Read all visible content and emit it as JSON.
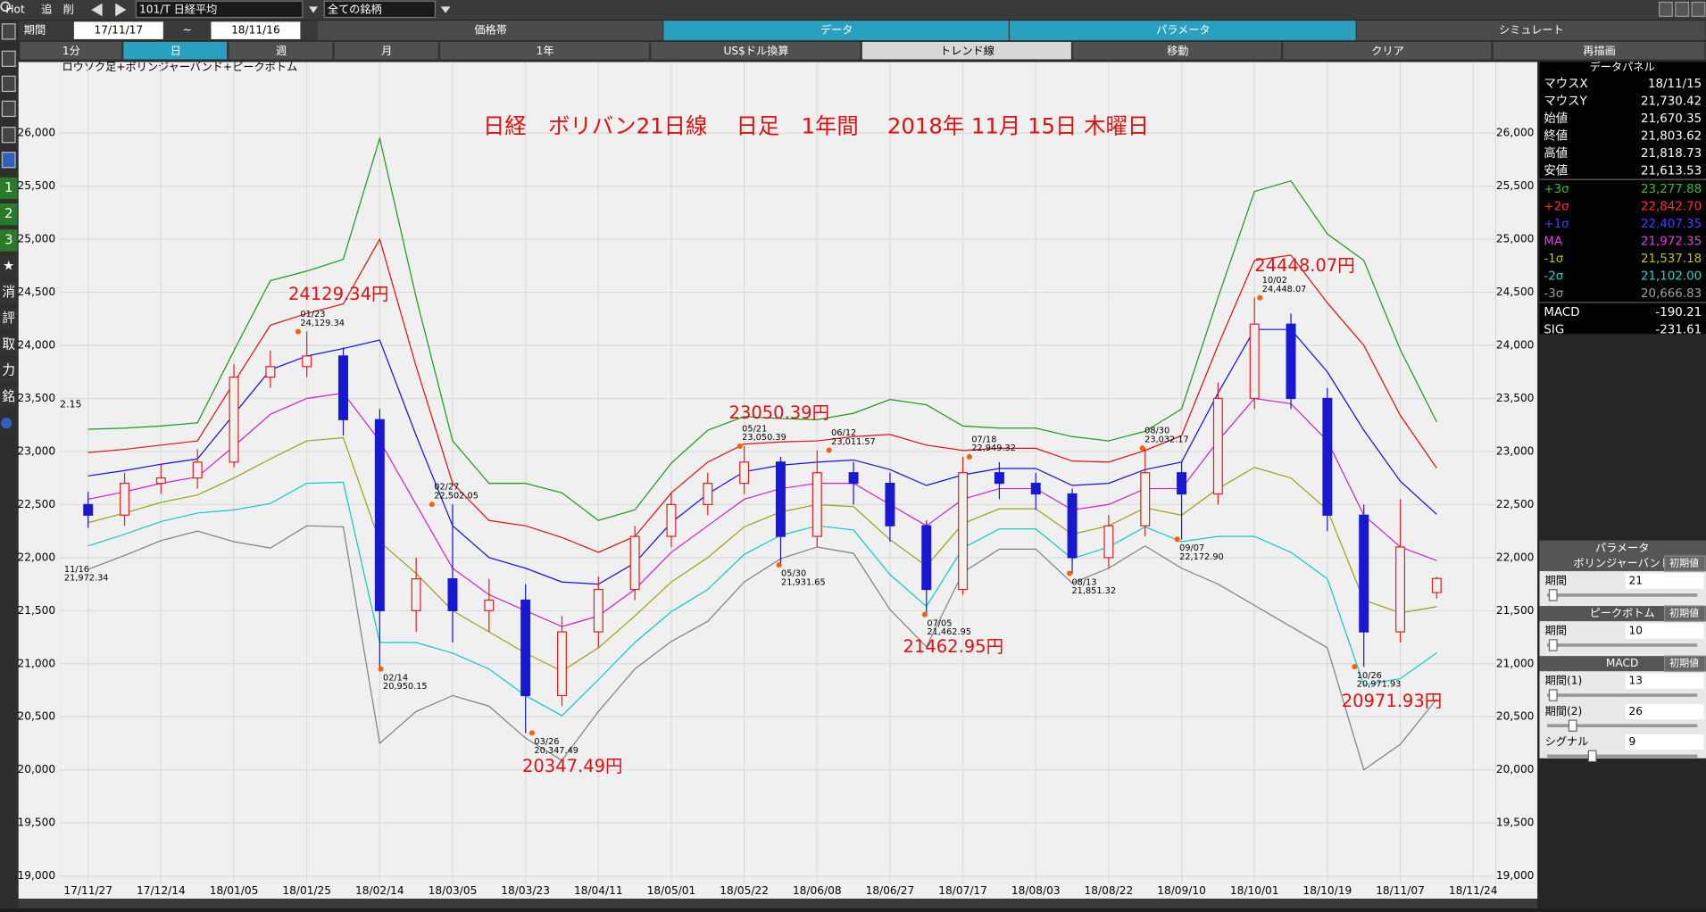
{
  "toolbar": {
    "row1": [
      "Hot",
      "追",
      "削",
      "101/T 日経平均",
      "全ての銘柄"
    ],
    "period_label": "期間",
    "from": "17/11/17",
    "tilde": "~",
    "to": "18/11/16",
    "tabs": [
      "価格帯",
      "データ",
      "パラメータ",
      "シミュレート"
    ],
    "buttons": [
      "1分",
      "日",
      "週",
      "月",
      "1年",
      "US$ドル換算",
      "トレンド線",
      "移動",
      "クリア",
      "再描画"
    ]
  },
  "sidebar": [
    "1",
    "2",
    "3",
    "★",
    "消",
    "評",
    "取",
    "力",
    "銘"
  ],
  "data_panel": {
    "title": "データパネル",
    "rows": [
      {
        "label": "マウスX",
        "value": "18/11/15",
        "color": "#ffffff"
      },
      {
        "label": "マウスY",
        "value": "21,730.42",
        "color": "#ffffff"
      },
      {
        "label": "始値",
        "value": "21,670.35",
        "color": "#ffffff"
      },
      {
        "label": "終値",
        "value": "21,803.62",
        "color": "#ffffff"
      },
      {
        "label": "高値",
        "value": "21,818.73",
        "color": "#ffffff"
      },
      {
        "label": "安値",
        "value": "21,613.53",
        "color": "#ffffff"
      },
      {
        "label": "+3σ",
        "value": "23,277.88",
        "color": "#30c030"
      },
      {
        "label": "+2σ",
        "value": "22,842.70",
        "color": "#ff3030"
      },
      {
        "label": "+1σ",
        "value": "22,407.35",
        "color": "#4040ff"
      },
      {
        "label": "MA",
        "value": "21,972.35",
        "color": "#e040e0"
      },
      {
        "label": "-1σ",
        "value": "21,537.18",
        "color": "#c0c020"
      },
      {
        "label": "-2σ",
        "value": "21,102.00",
        "color": "#30d0d0"
      },
      {
        "label": "-3σ",
        "value": "20,666.83",
        "color": "#a0a0a0"
      },
      {
        "label": "MACD",
        "value": "-190.21",
        "color": "#ffffff"
      },
      {
        "label": "SIG",
        "value": "-231.61",
        "color": "#ffffff"
      }
    ]
  },
  "param_panel": {
    "title": "パラメータ",
    "groups": [
      {
        "name": "ボリンジャーバンド",
        "reset": "初期値",
        "items": [
          {
            "label": "期間",
            "value": "21"
          }
        ]
      },
      {
        "name": "ピークボトム",
        "reset": "初期値",
        "items": [
          {
            "label": "期間",
            "value": "10"
          }
        ]
      },
      {
        "name": "MACD",
        "reset": "初期値",
        "items": [
          {
            "label": "期間(1)",
            "value": "13"
          },
          {
            "label": "期間(2)",
            "value": "26"
          },
          {
            "label": "シグナル",
            "value": "9"
          }
        ]
      }
    ]
  },
  "chart_data": {
    "type": "candlestick",
    "title": "日経　ボリバン21日線　 日足　1年間　 2018年 11月 15日 木曜日",
    "subtitle": "ロウソク足+ボリンジャーバンド+ピークボトム",
    "categories": [
      "17/11/27",
      null,
      "17/12/14",
      null,
      "18/01/05",
      null,
      "18/01/25",
      null,
      "18/02/14",
      null,
      "18/03/05",
      null,
      "18/03/23",
      null,
      "18/04/11",
      null,
      "18/05/01",
      null,
      "18/05/22",
      null,
      "18/06/08",
      null,
      "18/06/27",
      null,
      "18/07/17",
      null,
      "18/08/03",
      null,
      "18/08/22",
      null,
      "18/09/10",
      null,
      "18/10/01",
      null,
      "18/10/19",
      null,
      "18/11/07",
      null,
      "18/11/24"
    ],
    "open": [
      22500,
      22400,
      22700,
      22750,
      22900,
      23700,
      23800,
      23900,
      23300,
      21500,
      21800,
      21500,
      21600,
      20700,
      21300,
      21700,
      22200,
      22500,
      22700,
      22900,
      22200,
      22800,
      22700,
      22300,
      21700,
      22800,
      22700,
      22600,
      22000,
      22300,
      22800,
      22600,
      23500,
      24200,
      23500,
      22400,
      21300,
      21670.35,
      null
    ],
    "high": [
      22620,
      22800,
      22880,
      23020,
      23820,
      23950,
      24130,
      23980,
      23400,
      22000,
      22502,
      21800,
      21750,
      21450,
      21820,
      22300,
      22620,
      22800,
      23050,
      22950,
      23010,
      22900,
      22800,
      22350,
      22950,
      22900,
      22800,
      22650,
      22400,
      23030,
      22900,
      23650,
      24450,
      24300,
      23600,
      22500,
      22550,
      21818.73,
      null
    ],
    "low": [
      22280,
      22300,
      22600,
      22650,
      22850,
      23600,
      23700,
      23150,
      20950,
      21300,
      21200,
      21300,
      20347,
      20600,
      21150,
      21600,
      22100,
      22400,
      22600,
      21930,
      22100,
      22500,
      22150,
      21460,
      21650,
      22550,
      22450,
      21850,
      21900,
      22200,
      22170,
      22500,
      23400,
      23400,
      22250,
      20970,
      21200,
      21613.53,
      null
    ],
    "close": [
      22400,
      22700,
      22750,
      22900,
      23700,
      23800,
      23900,
      23300,
      21500,
      21800,
      21500,
      21600,
      20700,
      21300,
      21700,
      22200,
      22500,
      22700,
      22900,
      22200,
      22800,
      22700,
      22300,
      21700,
      22800,
      22700,
      22600,
      22000,
      22300,
      22800,
      22600,
      23500,
      24200,
      23500,
      22400,
      21300,
      22100,
      21803.62,
      null
    ],
    "up_color": "#e02020",
    "down_color": "#1818d0",
    "bands": [
      {
        "color": "#1a9a1a",
        "values": [
          23210,
          23220,
          23240,
          23270,
          23950,
          24610,
          24700,
          24810,
          25950,
          24450,
          23100,
          22700,
          22700,
          22610,
          22350,
          22450,
          22890,
          23200,
          23330,
          23310,
          23300,
          23360,
          23490,
          23440,
          23240,
          23220,
          23220,
          23140,
          23100,
          23190,
          23400,
          24450,
          25450,
          25550,
          25050,
          24800,
          23960,
          23277.88,
          null
        ]
      },
      {
        "color": "#e01010",
        "values": [
          22990,
          23020,
          23060,
          23100,
          23650,
          24190,
          24300,
          24390,
          25000,
          23800,
          22700,
          22350,
          22300,
          22190,
          22050,
          22200,
          22610,
          22900,
          23070,
          23090,
          23100,
          23140,
          23160,
          23060,
          23010,
          23030,
          23030,
          22910,
          22900,
          23010,
          23150,
          24000,
          24800,
          24850,
          24400,
          24000,
          23340,
          22842.7,
          null
        ]
      },
      {
        "color": "#1010e0",
        "values": [
          22770,
          22820,
          22880,
          22930,
          23350,
          23770,
          23900,
          23970,
          24050,
          23150,
          22300,
          22000,
          21900,
          21770,
          21750,
          21950,
          22330,
          22600,
          22810,
          22870,
          22900,
          22920,
          22830,
          22680,
          22780,
          22840,
          22840,
          22680,
          22700,
          22830,
          22900,
          23550,
          24150,
          24150,
          23750,
          23200,
          22720,
          22407.35,
          null
        ]
      },
      {
        "color": "#d020d0",
        "values": [
          22550,
          22620,
          22700,
          22760,
          23050,
          23350,
          23500,
          23550,
          23100,
          22500,
          21900,
          21650,
          21500,
          21350,
          21450,
          21700,
          22050,
          22300,
          22550,
          22650,
          22700,
          22700,
          22500,
          22300,
          22550,
          22650,
          22650,
          22450,
          22500,
          22650,
          22650,
          23100,
          23500,
          23450,
          23100,
          22400,
          22100,
          21972.35,
          null
        ]
      },
      {
        "color": "#a0a010",
        "values": [
          22330,
          22420,
          22520,
          22590,
          22750,
          22930,
          23100,
          23130,
          22150,
          21850,
          21500,
          21300,
          21100,
          20930,
          21150,
          21450,
          21770,
          22000,
          22290,
          22430,
          22500,
          22480,
          22170,
          21920,
          22320,
          22460,
          22460,
          22220,
          22300,
          22470,
          22400,
          22650,
          22850,
          22750,
          22450,
          21600,
          21480,
          21537.18,
          null
        ]
      },
      {
        "color": "#10c8c8",
        "values": [
          22110,
          22220,
          22340,
          22420,
          22450,
          22510,
          22700,
          22710,
          21200,
          21200,
          21100,
          20950,
          20700,
          20510,
          20850,
          21200,
          21490,
          21700,
          22030,
          22210,
          22300,
          22260,
          21840,
          21540,
          22090,
          22270,
          22270,
          21990,
          22100,
          22290,
          22150,
          22200,
          22200,
          22050,
          21800,
          20800,
          20860,
          21102.0,
          null
        ]
      },
      {
        "color": "#808080",
        "values": [
          21890,
          22020,
          22160,
          22250,
          22150,
          22090,
          22300,
          22290,
          20250,
          20550,
          20700,
          20600,
          20300,
          20090,
          20550,
          20950,
          21210,
          21400,
          21770,
          21990,
          22100,
          22040,
          21510,
          21160,
          21860,
          22080,
          22080,
          21760,
          21900,
          22110,
          21900,
          21750,
          21550,
          21350,
          21150,
          20000,
          20240,
          20666.83,
          null
        ]
      }
    ],
    "ylim": [
      18930,
      26670
    ],
    "yticks": [
      {
        "value": 19000,
        "label": "19,000"
      },
      {
        "value": 19500,
        "label": "19,500"
      },
      {
        "value": 20000,
        "label": "20,000"
      },
      {
        "value": 20500,
        "label": "20,500"
      },
      {
        "value": 21000,
        "label": "21,000"
      },
      {
        "value": 21500,
        "label": "21,500"
      },
      {
        "value": 22000,
        "label": "22,000"
      },
      {
        "value": 22500,
        "label": "22,500"
      },
      {
        "value": 23000,
        "label": "23,000"
      },
      {
        "value": 23500,
        "label": "23,500"
      },
      {
        "value": 24000,
        "label": "24,000"
      },
      {
        "value": 24500,
        "label": "24,500"
      },
      {
        "value": 25000,
        "label": "25,000"
      },
      {
        "value": 25500,
        "label": "25,500"
      },
      {
        "value": 26000,
        "label": "26,000"
      }
    ],
    "grid": true,
    "edge_text": "2.15",
    "annotations": [
      {
        "date": "11/16",
        "value": 21972.34,
        "label": "21,972.34"
      },
      {
        "date": "01/23",
        "value": 24129.34,
        "label": "24,129.34",
        "big": "24129.34円"
      },
      {
        "date": "02/14",
        "value": 20950.15,
        "label": "20,950.15"
      },
      {
        "date": "02/27",
        "value": 22502.05,
        "label": "22,502.05"
      },
      {
        "date": "03/26",
        "value": 20347.49,
        "label": "20,347.49",
        "big": "20347.49円"
      },
      {
        "date": "05/21",
        "value": 23050.39,
        "label": "23,050.39",
        "big": "23050.39円"
      },
      {
        "date": "05/30",
        "value": 21931.65,
        "label": "21,931.65"
      },
      {
        "date": "06/12",
        "value": 23011.57,
        "label": "23,011.57"
      },
      {
        "date": "07/05",
        "value": 21462.95,
        "label": "21,462.95",
        "big": "21462.95円"
      },
      {
        "date": "07/18",
        "value": 22949.32,
        "label": "22,949.32"
      },
      {
        "date": "08/13",
        "value": 21851.32,
        "label": "21,851.32"
      },
      {
        "date": "08/30",
        "value": 23032.17,
        "label": "23,032.17"
      },
      {
        "date": "09/07",
        "value": 22172.9,
        "label": "22,172.90"
      },
      {
        "date": "10/02",
        "value": 24448.07,
        "label": "24,448.07",
        "big": "24448.07円"
      },
      {
        "date": "10/26",
        "value": 20971.93,
        "label": "20,971.93",
        "big": "20971.93円"
      }
    ]
  }
}
